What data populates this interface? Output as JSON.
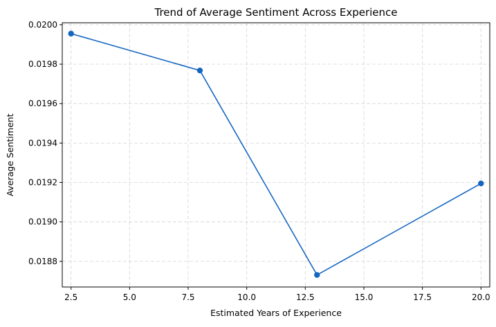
{
  "chart_data": {
    "type": "line",
    "title": "Trend of Average Sentiment Across Experience",
    "xlabel": "Estimated Years of Experience",
    "ylabel": "Average Sentiment",
    "xlim": [
      2.125,
      20.375
    ],
    "ylim": [
      0.01867,
      0.02001
    ],
    "x_ticks": [
      2.5,
      5.0,
      7.5,
      10.0,
      12.5,
      15.0,
      17.5,
      20.0
    ],
    "x_tick_labels": [
      "2.5",
      "5.0",
      "7.5",
      "10.0",
      "12.5",
      "15.0",
      "17.5",
      "20.0"
    ],
    "y_ticks": [
      0.0188,
      0.019,
      0.0192,
      0.0194,
      0.0196,
      0.0198,
      0.02
    ],
    "y_tick_labels": [
      "0.0188",
      "0.0190",
      "0.0192",
      "0.0194",
      "0.0196",
      "0.0198",
      "0.0200"
    ],
    "grid": true,
    "series": [
      {
        "color": "#1565c0",
        "marker": "circle",
        "x": [
          2.5,
          8.0,
          13.0,
          20.0
        ],
        "y": [
          0.019955,
          0.019768,
          0.018731,
          0.019195
        ]
      }
    ]
  }
}
